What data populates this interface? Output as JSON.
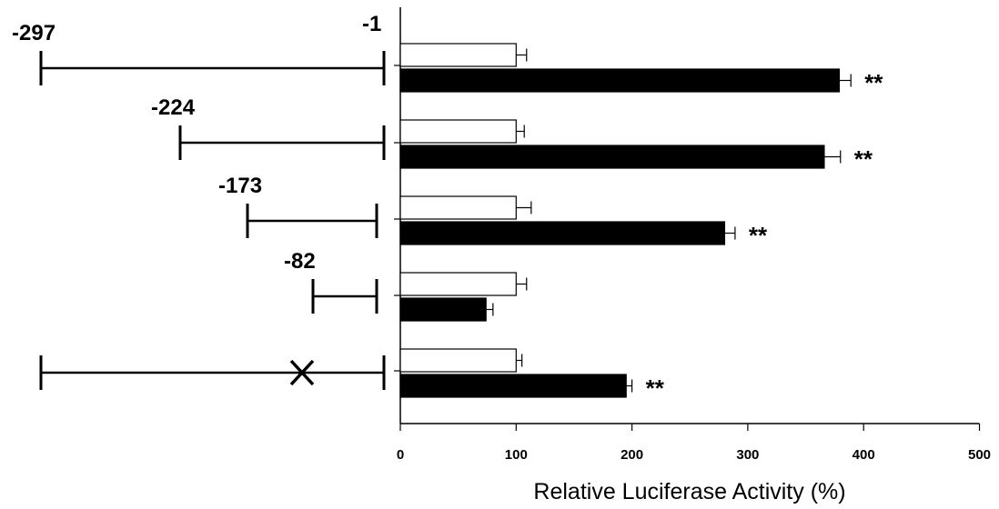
{
  "chart_data": {
    "type": "bar",
    "orientation": "horizontal",
    "xlabel": "Relative Luciferase Activity (%)",
    "xlim": [
      0,
      500
    ],
    "xticks": [
      "0",
      "100",
      "200",
      "300",
      "400",
      "500"
    ],
    "constructs": [
      {
        "start_label": "-297",
        "end_label": "-1",
        "mutated": false
      },
      {
        "start_label": "-224",
        "end_label": "",
        "mutated": false
      },
      {
        "start_label": "-173",
        "end_label": "",
        "mutated": false
      },
      {
        "start_label": "-82",
        "end_label": "",
        "mutated": false
      },
      {
        "start_label": "",
        "end_label": "",
        "mutated": true
      }
    ],
    "series": [
      {
        "fill": "#ffffff",
        "values": [
          100,
          100,
          100,
          100,
          100
        ],
        "errors": [
          9,
          7,
          13,
          9,
          5
        ]
      },
      {
        "fill": "#000000",
        "values": [
          379,
          366,
          280,
          74,
          195
        ],
        "errors": [
          10,
          14,
          9,
          6,
          5
        ]
      }
    ],
    "significance": [
      "**",
      "**",
      "**",
      "",
      "**"
    ]
  }
}
